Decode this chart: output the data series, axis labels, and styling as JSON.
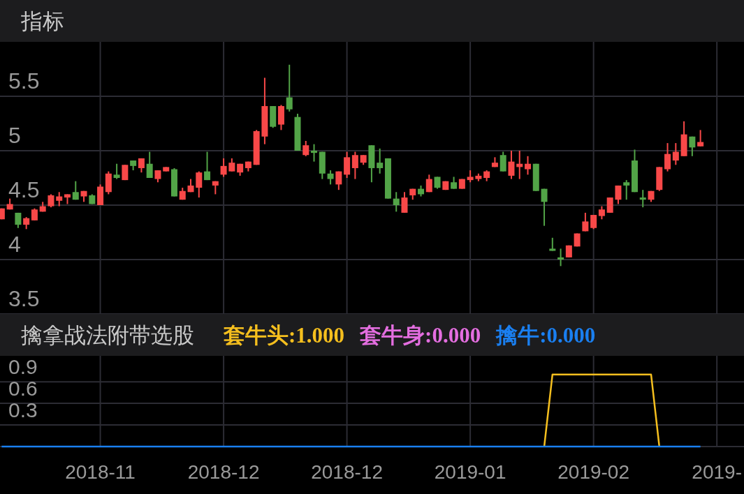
{
  "chart_data": [
    {
      "type": "candlestick",
      "title": "指标",
      "tick_labels": "y",
      "grid": true,
      "categories": [
        null,
        null,
        null,
        null,
        null,
        null,
        null,
        null,
        null,
        null,
        null,
        null,
        null,
        null,
        null,
        null,
        null,
        null,
        null,
        null,
        null,
        null,
        null,
        null,
        null,
        null,
        null,
        null,
        null,
        null,
        null,
        null,
        null,
        null,
        null,
        null,
        null,
        null,
        null,
        null,
        null,
        null,
        null,
        null,
        null,
        null,
        null,
        null,
        null,
        null,
        null,
        null,
        null,
        null,
        null,
        null,
        null,
        null,
        null,
        null,
        null,
        null,
        null,
        null,
        null,
        null,
        null,
        null,
        null,
        null,
        null,
        null,
        null,
        null,
        null,
        null,
        null,
        null,
        null,
        null,
        null,
        null,
        null,
        null,
        null,
        null,
        null,
        null,
        null,
        null
      ],
      "ylim": [
        3.5,
        6.0
      ],
      "yticks": [
        3.5,
        4,
        4.5,
        5,
        5.5
      ],
      "ohlc": [
        [
          4.37,
          4.47,
          4.37,
          4.47
        ],
        [
          4.46,
          4.56,
          4.46,
          4.51
        ],
        [
          4.43,
          4.43,
          4.29,
          4.32
        ],
        [
          4.32,
          4.39,
          4.28,
          4.38
        ],
        [
          4.36,
          4.47,
          4.36,
          4.46
        ],
        [
          4.44,
          4.53,
          4.44,
          4.49
        ],
        [
          4.49,
          4.6,
          4.48,
          4.59
        ],
        [
          4.54,
          4.62,
          4.49,
          4.58
        ],
        [
          4.57,
          4.6,
          4.51,
          4.6
        ],
        [
          4.62,
          4.72,
          4.55,
          4.55
        ],
        [
          4.58,
          4.63,
          4.53,
          4.63
        ],
        [
          4.59,
          4.6,
          4.51,
          4.51
        ],
        [
          4.5,
          4.69,
          4.5,
          4.67
        ],
        [
          4.62,
          4.81,
          4.6,
          4.79
        ],
        [
          4.78,
          4.88,
          4.74,
          4.75
        ],
        [
          4.73,
          4.87,
          4.73,
          4.87
        ],
        [
          4.91,
          4.91,
          4.82,
          4.86
        ],
        [
          4.84,
          4.93,
          4.8,
          4.93
        ],
        [
          4.88,
          4.99,
          4.75,
          4.75
        ],
        [
          4.74,
          4.82,
          4.71,
          4.82
        ],
        [
          4.81,
          4.85,
          4.81,
          4.85
        ],
        [
          4.83,
          4.84,
          4.58,
          4.58
        ],
        [
          4.55,
          4.66,
          4.55,
          4.63
        ],
        [
          4.62,
          4.74,
          4.62,
          4.68
        ],
        [
          4.66,
          4.81,
          4.57,
          4.8
        ],
        [
          4.81,
          4.99,
          4.73,
          4.73
        ],
        [
          4.68,
          4.72,
          4.6,
          4.72
        ],
        [
          4.78,
          4.93,
          4.76,
          4.86
        ],
        [
          4.81,
          4.93,
          4.81,
          4.89
        ],
        [
          4.8,
          4.88,
          4.77,
          4.88
        ],
        [
          4.84,
          4.9,
          4.81,
          4.9
        ],
        [
          4.87,
          5.19,
          4.87,
          5.18
        ],
        [
          5.13,
          5.67,
          5.06,
          5.41
        ],
        [
          5.41,
          5.41,
          5.21,
          5.22
        ],
        [
          5.24,
          5.42,
          5.19,
          5.41
        ],
        [
          5.49,
          5.79,
          5.36,
          5.38
        ],
        [
          5.31,
          5.34,
          5.0,
          5.0
        ],
        [
          4.96,
          5.09,
          4.95,
          5.05
        ],
        [
          5.0,
          5.06,
          4.9,
          4.98
        ],
        [
          4.99,
          4.99,
          4.74,
          4.79
        ],
        [
          4.79,
          4.82,
          4.69,
          4.74
        ],
        [
          4.69,
          4.81,
          4.64,
          4.81
        ],
        [
          4.78,
          4.99,
          4.75,
          4.94
        ],
        [
          4.84,
          4.99,
          4.74,
          4.96
        ],
        [
          4.89,
          4.96,
          4.87,
          4.96
        ],
        [
          5.05,
          5.05,
          4.71,
          4.84
        ],
        [
          4.89,
          5.02,
          4.79,
          4.84
        ],
        [
          4.93,
          4.93,
          4.56,
          4.56
        ],
        [
          4.56,
          4.62,
          4.44,
          4.5
        ],
        [
          4.43,
          4.62,
          4.43,
          4.57
        ],
        [
          4.59,
          4.65,
          4.55,
          4.65
        ],
        [
          4.65,
          4.68,
          4.58,
          4.6
        ],
        [
          4.62,
          4.78,
          4.62,
          4.74
        ],
        [
          4.76,
          4.76,
          4.65,
          4.66
        ],
        [
          4.64,
          4.72,
          4.64,
          4.72
        ],
        [
          4.71,
          4.76,
          4.65,
          4.65
        ],
        [
          4.65,
          4.74,
          4.65,
          4.74
        ],
        [
          4.73,
          4.82,
          4.71,
          4.76
        ],
        [
          4.74,
          4.79,
          4.72,
          4.77
        ],
        [
          4.75,
          4.82,
          4.72,
          4.81
        ],
        [
          4.85,
          4.94,
          4.85,
          4.89
        ],
        [
          4.96,
          4.99,
          4.81,
          4.81
        ],
        [
          4.77,
          5.0,
          4.74,
          4.9
        ],
        [
          4.85,
          5.0,
          4.74,
          4.88
        ],
        [
          4.83,
          4.95,
          4.78,
          4.88
        ],
        [
          4.88,
          4.88,
          4.63,
          4.63
        ],
        [
          4.65,
          4.65,
          4.31,
          4.53
        ],
        [
          4.1,
          4.2,
          4.08,
          4.08
        ],
        [
          4.02,
          4.1,
          3.94,
          4.0
        ],
        [
          4.02,
          4.13,
          4.02,
          4.13
        ],
        [
          4.12,
          4.24,
          4.12,
          4.24
        ],
        [
          4.26,
          4.43,
          4.26,
          4.35
        ],
        [
          4.29,
          4.41,
          4.28,
          4.41
        ],
        [
          4.4,
          4.49,
          4.37,
          4.46
        ],
        [
          4.43,
          4.57,
          4.43,
          4.57
        ],
        [
          4.55,
          4.68,
          4.51,
          4.68
        ],
        [
          4.71,
          4.73,
          4.55,
          4.68
        ],
        [
          4.91,
          5.01,
          4.62,
          4.62
        ],
        [
          4.57,
          4.64,
          4.48,
          4.55
        ],
        [
          4.55,
          4.63,
          4.53,
          4.63
        ],
        [
          4.64,
          4.85,
          4.63,
          4.85
        ],
        [
          4.83,
          5.07,
          4.81,
          4.97
        ],
        [
          4.91,
          5.07,
          4.87,
          4.99
        ],
        [
          4.95,
          5.27,
          4.95,
          5.15
        ],
        [
          5.13,
          5.13,
          4.95,
          5.03
        ],
        [
          5.04,
          5.19,
          5.04,
          5.08
        ],
        null,
        null,
        null,
        null
      ],
      "colors": [
        "#f84848",
        "#f84848",
        "#52a447",
        "#f84848",
        "#f84848",
        "#f84848",
        "#f84848",
        "#f84848",
        "#f84848",
        "#52a447",
        "#f84848",
        "#52a447",
        "#f84848",
        "#f84848",
        "#52a447",
        "#f84848",
        "#52a447",
        "#f84848",
        "#52a447",
        "#f84848",
        "#f84848",
        "#52a447",
        "#f84848",
        "#f84848",
        "#f84848",
        "#52a447",
        "#f84848",
        "#f84848",
        "#f84848",
        "#f84848",
        "#f84848",
        "#f84848",
        "#f84848",
        "#52a447",
        "#f84848",
        "#52a447",
        "#52a447",
        "#f84848",
        "#52a447",
        "#52a447",
        "#52a447",
        "#f84848",
        "#f84848",
        "#f84848",
        "#f84848",
        "#52a447",
        "#52a447",
        "#52a447",
        "#52a447",
        "#f84848",
        "#f84848",
        "#52a447",
        "#f84848",
        "#52a447",
        "#f84848",
        "#52a447",
        "#f84848",
        "#f84848",
        "#f84848",
        "#f84848",
        "#f84848",
        "#52a447",
        "#f84848",
        "#f84848",
        "#f84848",
        "#52a447",
        "#52a447",
        "#52a447",
        "#52a447",
        "#f84848",
        "#f84848",
        "#f84848",
        "#f84848",
        "#f84848",
        "#f84848",
        "#f84848",
        "#52a447",
        "#52a447",
        "#52a447",
        "#f84848",
        "#f84848",
        "#f84848",
        "#f84848",
        "#f84848",
        "#52a447",
        "#f84848",
        null,
        null,
        null,
        null
      ]
    },
    {
      "type": "line",
      "title": "擒拿战法附带选股",
      "grid": true,
      "legend": "top",
      "categories": [
        null,
        null,
        null,
        null,
        null,
        null,
        null,
        null,
        null,
        null,
        null,
        null,
        "2018-11",
        null,
        null,
        null,
        null,
        null,
        null,
        null,
        null,
        null,
        null,
        null,
        null,
        null,
        null,
        "2018-12",
        null,
        null,
        null,
        null,
        null,
        null,
        null,
        null,
        null,
        null,
        null,
        null,
        null,
        null,
        "2018-12",
        null,
        null,
        null,
        null,
        null,
        null,
        null,
        null,
        null,
        null,
        null,
        null,
        null,
        null,
        "2019-01",
        null,
        null,
        null,
        null,
        null,
        null,
        null,
        null,
        null,
        null,
        null,
        null,
        null,
        null,
        "2019-02",
        null,
        null,
        null,
        null,
        null,
        null,
        null,
        null,
        null,
        null,
        null,
        null,
        null,
        null,
        "2019-",
        null,
        null
      ],
      "ylim": [
        0,
        1.26
      ],
      "yticks": [
        {
          "value": 0,
          "label": null
        },
        0.3,
        0.6,
        0.9
      ],
      "series": [
        {
          "name": "套牛头:1.000",
          "color": "#f5bf1e",
          "values": [
            null,
            null,
            null,
            null,
            null,
            null,
            null,
            null,
            null,
            null,
            null,
            null,
            null,
            null,
            null,
            null,
            null,
            null,
            null,
            null,
            null,
            null,
            null,
            null,
            null,
            null,
            null,
            null,
            null,
            null,
            null,
            null,
            null,
            null,
            null,
            null,
            null,
            null,
            null,
            null,
            null,
            null,
            null,
            null,
            null,
            null,
            null,
            null,
            null,
            null,
            null,
            null,
            null,
            null,
            null,
            null,
            null,
            null,
            null,
            null,
            null,
            null,
            null,
            null,
            null,
            null,
            0,
            1,
            1,
            1,
            1,
            1,
            1,
            1,
            1,
            1,
            1,
            1,
            1,
            1,
            0,
            null,
            null,
            null,
            null,
            null,
            null,
            null,
            null,
            null
          ]
        },
        {
          "name": "套牛身:0.000",
          "color": "#e46ee0",
          "values": [
            null,
            null,
            null,
            null,
            null,
            null,
            null,
            null,
            null,
            null,
            null,
            null,
            null,
            null,
            null,
            null,
            null,
            null,
            null,
            null,
            null,
            null,
            null,
            null,
            null,
            null,
            null,
            null,
            null,
            null,
            null,
            null,
            null,
            null,
            null,
            null,
            null,
            null,
            null,
            null,
            null,
            null,
            null,
            null,
            null,
            null,
            null,
            null,
            null,
            null,
            null,
            null,
            null,
            null,
            null,
            null,
            null,
            null,
            null,
            null,
            null,
            null,
            null,
            null,
            null,
            null,
            null,
            null,
            null,
            null,
            null,
            null,
            null,
            null,
            null,
            null,
            null,
            null,
            null,
            null,
            null,
            null,
            null,
            null,
            null,
            null,
            null,
            null,
            null,
            null
          ]
        },
        {
          "name": "擒牛:0.000",
          "color": "#1a7ff0",
          "values": [
            0,
            0,
            0,
            0,
            0,
            0,
            0,
            0,
            0,
            0,
            0,
            0,
            0,
            0,
            0,
            0,
            0,
            0,
            0,
            0,
            0,
            0,
            0,
            0,
            0,
            0,
            0,
            0,
            0,
            0,
            0,
            0,
            0,
            0,
            0,
            0,
            0,
            0,
            0,
            0,
            0,
            0,
            0,
            0,
            0,
            0,
            0,
            0,
            0,
            0,
            0,
            0,
            0,
            0,
            0,
            0,
            0,
            0,
            0,
            0,
            0,
            0,
            0,
            0,
            0,
            0,
            0,
            0,
            0,
            0,
            0,
            0,
            0,
            0,
            0,
            0,
            0,
            0,
            0,
            0,
            0,
            0,
            0,
            0,
            0,
            0,
            null,
            null,
            null,
            null
          ]
        }
      ]
    }
  ]
}
